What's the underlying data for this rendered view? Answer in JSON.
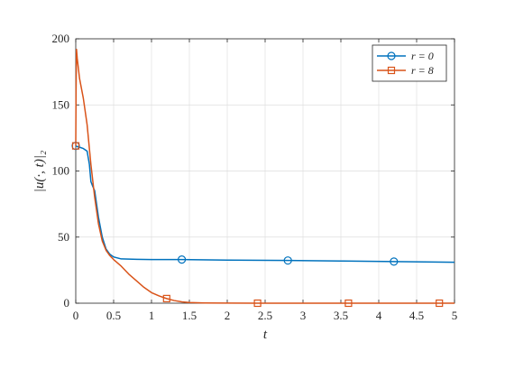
{
  "chart_data": {
    "type": "line",
    "xlabel": "t",
    "ylabel": "|u(·, t)|₂",
    "xlim": [
      0,
      5
    ],
    "ylim": [
      0,
      200
    ],
    "xticks": [
      "0",
      "0.5",
      "1",
      "1.5",
      "2",
      "2.5",
      "3",
      "3.5",
      "4",
      "4.5",
      "5"
    ],
    "yticks": [
      "0",
      "50",
      "100",
      "150",
      "200"
    ],
    "grid": true,
    "legend_position": "top-right",
    "series": [
      {
        "name": "r = 0",
        "color": "#0072BD",
        "marker": "circle",
        "x": [
          0,
          0.02,
          0.05,
          0.1,
          0.15,
          0.18,
          0.2,
          0.22,
          0.25,
          0.3,
          0.35,
          0.4,
          0.45,
          0.5,
          0.6,
          0.8,
          1.0,
          1.4,
          2.0,
          2.8,
          3.5,
          4.2,
          5.0
        ],
        "y": [
          119,
          118.5,
          118,
          117,
          115,
          105,
          92,
          89,
          85,
          65,
          50,
          41,
          37,
          35,
          33.5,
          33.2,
          33,
          33,
          32.6,
          32.3,
          31.9,
          31.5,
          31
        ],
        "marker_x": [
          0,
          1.4,
          2.8,
          4.2
        ],
        "marker_y": [
          119,
          33,
          32.3,
          31.5
        ]
      },
      {
        "name": "r = 8",
        "color": "#D95319",
        "marker": "square",
        "x": [
          0,
          0.004,
          0.01,
          0.02,
          0.05,
          0.1,
          0.15,
          0.2,
          0.25,
          0.3,
          0.35,
          0.4,
          0.45,
          0.5,
          0.6,
          0.7,
          0.8,
          0.9,
          1.0,
          1.1,
          1.2,
          1.3,
          1.4,
          1.5,
          1.7,
          2.0,
          2.4,
          3.0,
          3.6,
          4.2,
          4.8,
          5.0
        ],
        "y": [
          119,
          160,
          192,
          185,
          170,
          155,
          135,
          105,
          80,
          60,
          47,
          40,
          36,
          33,
          28,
          22,
          17,
          12,
          8,
          5.5,
          3.5,
          2,
          1,
          0.5,
          0.2,
          0.05,
          0,
          0,
          0,
          0,
          0,
          0
        ],
        "marker_x": [
          0,
          1.2,
          2.4,
          3.6,
          4.8
        ],
        "marker_y": [
          119,
          3.5,
          0,
          0,
          0
        ]
      }
    ]
  }
}
